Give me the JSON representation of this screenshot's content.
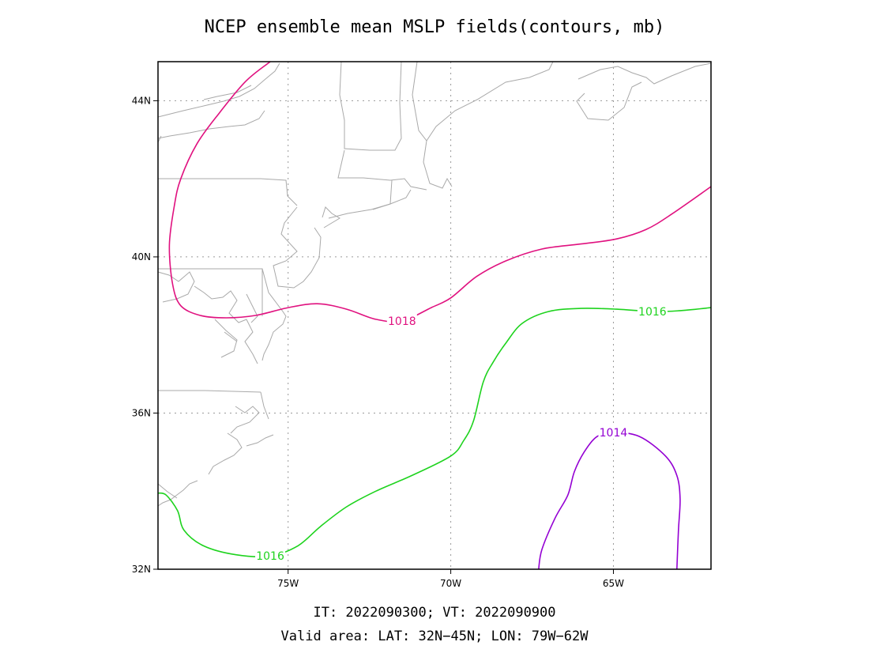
{
  "title": "NCEP ensemble mean MSLP fields(contours, mb)",
  "footer": {
    "line1": "IT: 2022090300; VT: 2022090900",
    "line2": "Valid area: LAT: 32N−45N; LON: 79W−62W"
  },
  "map": {
    "lat_range": [
      32,
      45
    ],
    "lon_range": [
      -79,
      -62
    ],
    "lat_ticks": [
      {
        "value": 32,
        "label": "32N"
      },
      {
        "value": 36,
        "label": "36N"
      },
      {
        "value": 40,
        "label": "40N"
      },
      {
        "value": 44,
        "label": "44N"
      }
    ],
    "lon_ticks": [
      {
        "value": -75,
        "label": "75W"
      },
      {
        "value": -70,
        "label": "70W"
      },
      {
        "value": -65,
        "label": "65W"
      }
    ],
    "grid": true
  },
  "contours": [
    {
      "value": "1018",
      "color": "#e0117f",
      "labels": [
        {
          "lon": -71.5,
          "lat": 38.36
        }
      ],
      "points": [
        [
          -75.55,
          45.0
        ],
        [
          -76.3,
          44.5
        ],
        [
          -77.1,
          43.7
        ],
        [
          -77.8,
          42.9
        ],
        [
          -78.3,
          42.0
        ],
        [
          -78.5,
          41.3
        ],
        [
          -78.65,
          40.3
        ],
        [
          -78.55,
          39.3
        ],
        [
          -78.3,
          38.75
        ],
        [
          -77.7,
          38.5
        ],
        [
          -76.9,
          38.44
        ],
        [
          -76.0,
          38.5
        ],
        [
          -75.0,
          38.7
        ],
        [
          -74.1,
          38.8
        ],
        [
          -73.2,
          38.66
        ],
        [
          -72.3,
          38.4
        ],
        [
          -71.5,
          38.36
        ],
        [
          -70.6,
          38.7
        ],
        [
          -70.0,
          38.95
        ],
        [
          -69.2,
          39.5
        ],
        [
          -68.3,
          39.9
        ],
        [
          -67.2,
          40.2
        ],
        [
          -66.0,
          40.33
        ],
        [
          -64.9,
          40.46
        ],
        [
          -64.0,
          40.7
        ],
        [
          -63.2,
          41.1
        ],
        [
          -62.0,
          41.8
        ]
      ]
    },
    {
      "value": "1016",
      "color": "#1ed31e",
      "labels": [
        {
          "lon": -63.8,
          "lat": 38.6
        },
        {
          "lon": -75.55,
          "lat": 32.34
        }
      ],
      "points": [
        [
          -62.0,
          38.7
        ],
        [
          -63.0,
          38.62
        ],
        [
          -63.8,
          38.6
        ],
        [
          -64.9,
          38.66
        ],
        [
          -66.0,
          38.68
        ],
        [
          -67.0,
          38.6
        ],
        [
          -67.8,
          38.3
        ],
        [
          -68.3,
          37.8
        ],
        [
          -68.7,
          37.3
        ],
        [
          -69.0,
          36.8
        ],
        [
          -69.3,
          35.8
        ],
        [
          -69.6,
          35.3
        ],
        [
          -70.0,
          34.9
        ],
        [
          -71.2,
          34.4
        ],
        [
          -72.3,
          34.0
        ],
        [
          -73.2,
          33.6
        ],
        [
          -74.0,
          33.1
        ],
        [
          -74.7,
          32.6
        ],
        [
          -75.55,
          32.34
        ],
        [
          -76.6,
          32.37
        ],
        [
          -77.6,
          32.6
        ],
        [
          -78.2,
          33.0
        ],
        [
          -78.4,
          33.5
        ],
        [
          -78.75,
          33.9
        ],
        [
          -79.0,
          33.95
        ]
      ]
    },
    {
      "value": "1014",
      "color": "#9400d3",
      "labels": [
        {
          "lon": -65.0,
          "lat": 35.5
        }
      ],
      "points": [
        [
          -67.3,
          32.0
        ],
        [
          -67.2,
          32.5
        ],
        [
          -66.8,
          33.3
        ],
        [
          -66.4,
          33.9
        ],
        [
          -66.2,
          34.5
        ],
        [
          -65.9,
          35.0
        ],
        [
          -65.5,
          35.4
        ],
        [
          -65.0,
          35.5
        ],
        [
          -64.2,
          35.4
        ],
        [
          -63.4,
          34.9
        ],
        [
          -63.05,
          34.4
        ],
        [
          -62.95,
          33.8
        ],
        [
          -63.0,
          33.0
        ],
        [
          -63.05,
          32.0
        ]
      ]
    }
  ]
}
